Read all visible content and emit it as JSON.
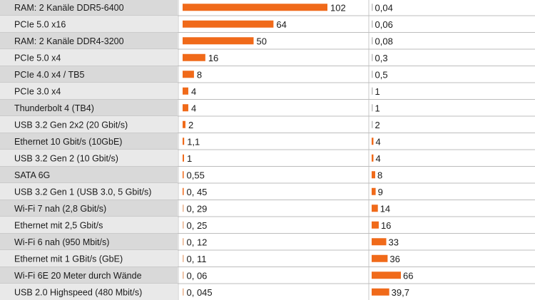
{
  "colors": {
    "bar": "#f06a1a",
    "label_bg_a": "#d9d9d9",
    "label_bg_b": "#e9e9e9",
    "row_divider": "#bdbdbd",
    "text": "#1a1a1a"
  },
  "chart_data": {
    "type": "bar",
    "orientation": "horizontal",
    "categories": [
      "RAM: 2 Kanäle DDR5-6400",
      "PCIe 5.0 x16",
      "RAM: 2 Kanäle DDR4-3200",
      "PCIe 5.0 x4",
      "PCIe 4.0 x4 / TB5",
      "PCIe 3.0 x4",
      "Thunderbolt 4 (TB4)",
      "USB 3.2 Gen 2x2 (20 Gbit/s)",
      "Ethernet 10 Gbit/s (10GbE)",
      "USB 3.2 Gen 2 (10 Gbit/s)",
      "SATA 6G",
      "USB 3.2 Gen 1 (USB 3.0, 5 Gbit/s)",
      "Wi-Fi 7 nah (2,8 Gbit/s)",
      "Ethernet mit 2,5 Gbit/s",
      "Wi-Fi 6 nah (950 Mbit/s)",
      "Ethernet mit 1 GBit/s  (GbE)",
      "Wi-Fi 6E 20 Meter durch Wände",
      "USB 2.0 Highspeed (480 Mbit/s)"
    ],
    "series": [
      {
        "values": [
          102,
          64,
          50,
          16,
          8,
          4,
          4,
          2,
          1.1,
          1,
          0.55,
          0.45,
          0.29,
          0.25,
          0.12,
          0.11,
          0.06,
          0.045
        ],
        "labels": [
          "102",
          "64",
          "50",
          "16",
          "8",
          "4",
          "4",
          "2",
          "1,1",
          "1",
          "0,55",
          "0, 45",
          "0, 29",
          "0, 25",
          "0, 12",
          "0, 11",
          "0, 06",
          "0, 045"
        ]
      },
      {
        "values": [
          0.04,
          0.06,
          0.08,
          0.3,
          0.5,
          1,
          1,
          2,
          4,
          4,
          8,
          9,
          14,
          16,
          33,
          36,
          66,
          39.7
        ],
        "labels": [
          "0,04",
          "0,06",
          "0,08",
          "0,3",
          "0,5",
          "1",
          "1",
          "2",
          "4",
          "4",
          "8",
          "9",
          "14",
          "16",
          "33",
          "36",
          "66",
          "39,7"
        ]
      }
    ]
  }
}
